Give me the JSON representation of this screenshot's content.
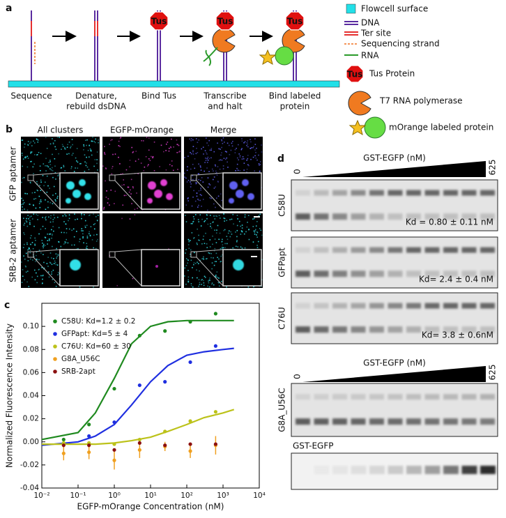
{
  "panel_labels": [
    "a",
    "b",
    "c",
    "d"
  ],
  "schematic": {
    "steps": [
      [
        "Sequence"
      ],
      [
        "Denature,",
        "rebuild dsDNA"
      ],
      [
        "Bind Tus"
      ],
      [
        "Transcribe",
        "and halt"
      ],
      [
        "Bind labeled",
        "protein"
      ]
    ],
    "tus_label": "Tus"
  },
  "legend": {
    "items": [
      "Flowcell surface",
      "DNA",
      "Ter site",
      "Sequencing strand",
      "RNA",
      "Tus Protein",
      "T7 RNA polymerase",
      "mOrange labeled protein"
    ]
  },
  "microscopy": {
    "columns": [
      "All clusters",
      "EGFP-mOrange",
      "Merge"
    ],
    "rows": [
      "GFP aptamer",
      "SRB-2 aptamer"
    ]
  },
  "chart_data": {
    "type": "scatter",
    "xlabel": "EGFP-mOrange Concentration (nM)",
    "ylabel": "Normalized Fluorescence Intensity",
    "log_x": true,
    "xlim": [
      0.01,
      10000
    ],
    "xticks": [
      {
        "value": 0.01,
        "label": "10⁻²"
      },
      {
        "value": 0.1,
        "label": "10⁻¹"
      },
      {
        "value": 1,
        "label": "10⁰"
      },
      {
        "value": 10,
        "label": "10¹"
      },
      {
        "value": 100,
        "label": "10²"
      },
      {
        "value": 1000,
        "label": "10³"
      },
      {
        "value": 10000,
        "label": "10⁴"
      }
    ],
    "ylim": [
      -0.04,
      0.12
    ],
    "yticks": [
      -0.04,
      -0.02,
      {
        "value": 0,
        "label": "0.00"
      },
      0.02,
      0.04,
      0.06,
      0.08,
      {
        "value": 0.1,
        "label": "0.10"
      }
    ],
    "x": [
      0.04,
      0.2,
      1,
      5,
      25,
      125,
      625
    ],
    "fit_x": [
      0.01,
      0.1,
      0.3,
      1,
      3,
      10,
      30,
      100,
      300,
      1000,
      2000
    ],
    "series": [
      {
        "name": "C58U: Kd=1.2 ± 0.2",
        "color": "#1f8a1f",
        "values": [
          0.002,
          0.015,
          0.046,
          0.092,
          0.096,
          0.104,
          0.111
        ],
        "fit": [
          0.002,
          0.008,
          0.025,
          0.055,
          0.085,
          0.1,
          0.104,
          0.105,
          0.105,
          0.105,
          0.105
        ]
      },
      {
        "name": "GFPapt: Kd=5 ± 4",
        "color": "#1f2fe0",
        "values": [
          -0.002,
          0.005,
          0.017,
          0.049,
          0.052,
          0.069,
          0.083
        ],
        "fit": [
          -0.003,
          0,
          0.005,
          0.015,
          0.032,
          0.052,
          0.066,
          0.075,
          0.078,
          0.08,
          0.081
        ]
      },
      {
        "name": "C76U: Kd=60 ± 30",
        "color": "#bcc21a",
        "values": [
          -0.001,
          -0.001,
          -0.002,
          0.002,
          0.009,
          0.018,
          0.026
        ],
        "fit": [
          -0.002,
          -0.002,
          -0.002,
          -0.001,
          0.001,
          0.004,
          0.009,
          0.015,
          0.021,
          0.025,
          0.028
        ]
      },
      {
        "name": "G8A_U56C",
        "color": "#f0a020",
        "values": [
          -0.01,
          -0.009,
          -0.016,
          -0.007,
          -0.004,
          -0.008,
          -0.003
        ],
        "errors": [
          0.006,
          0.006,
          0.008,
          0.007,
          0.004,
          0.006,
          0.008
        ]
      },
      {
        "name": "SRB-2apt",
        "color": "#8b1010",
        "values": [
          -0.003,
          -0.003,
          -0.007,
          -0.001,
          -0.003,
          -0.002,
          -0.002
        ]
      }
    ]
  },
  "gels": {
    "header": "GST-EGFP (nM)",
    "low": "0",
    "high": "625",
    "lanes": [
      {
        "name": "C58U",
        "kd": "Kd = 0.80 ± 0.11 nM"
      },
      {
        "name": "GFPapt",
        "kd": "Kd= 2.4 ± 0.4 nM"
      },
      {
        "name": "C76U",
        "kd": "Kd= 3.8 ± 0.6nM"
      },
      {
        "name": "G8A_U56C"
      }
    ],
    "protein_strip": "GST-EGFP"
  }
}
